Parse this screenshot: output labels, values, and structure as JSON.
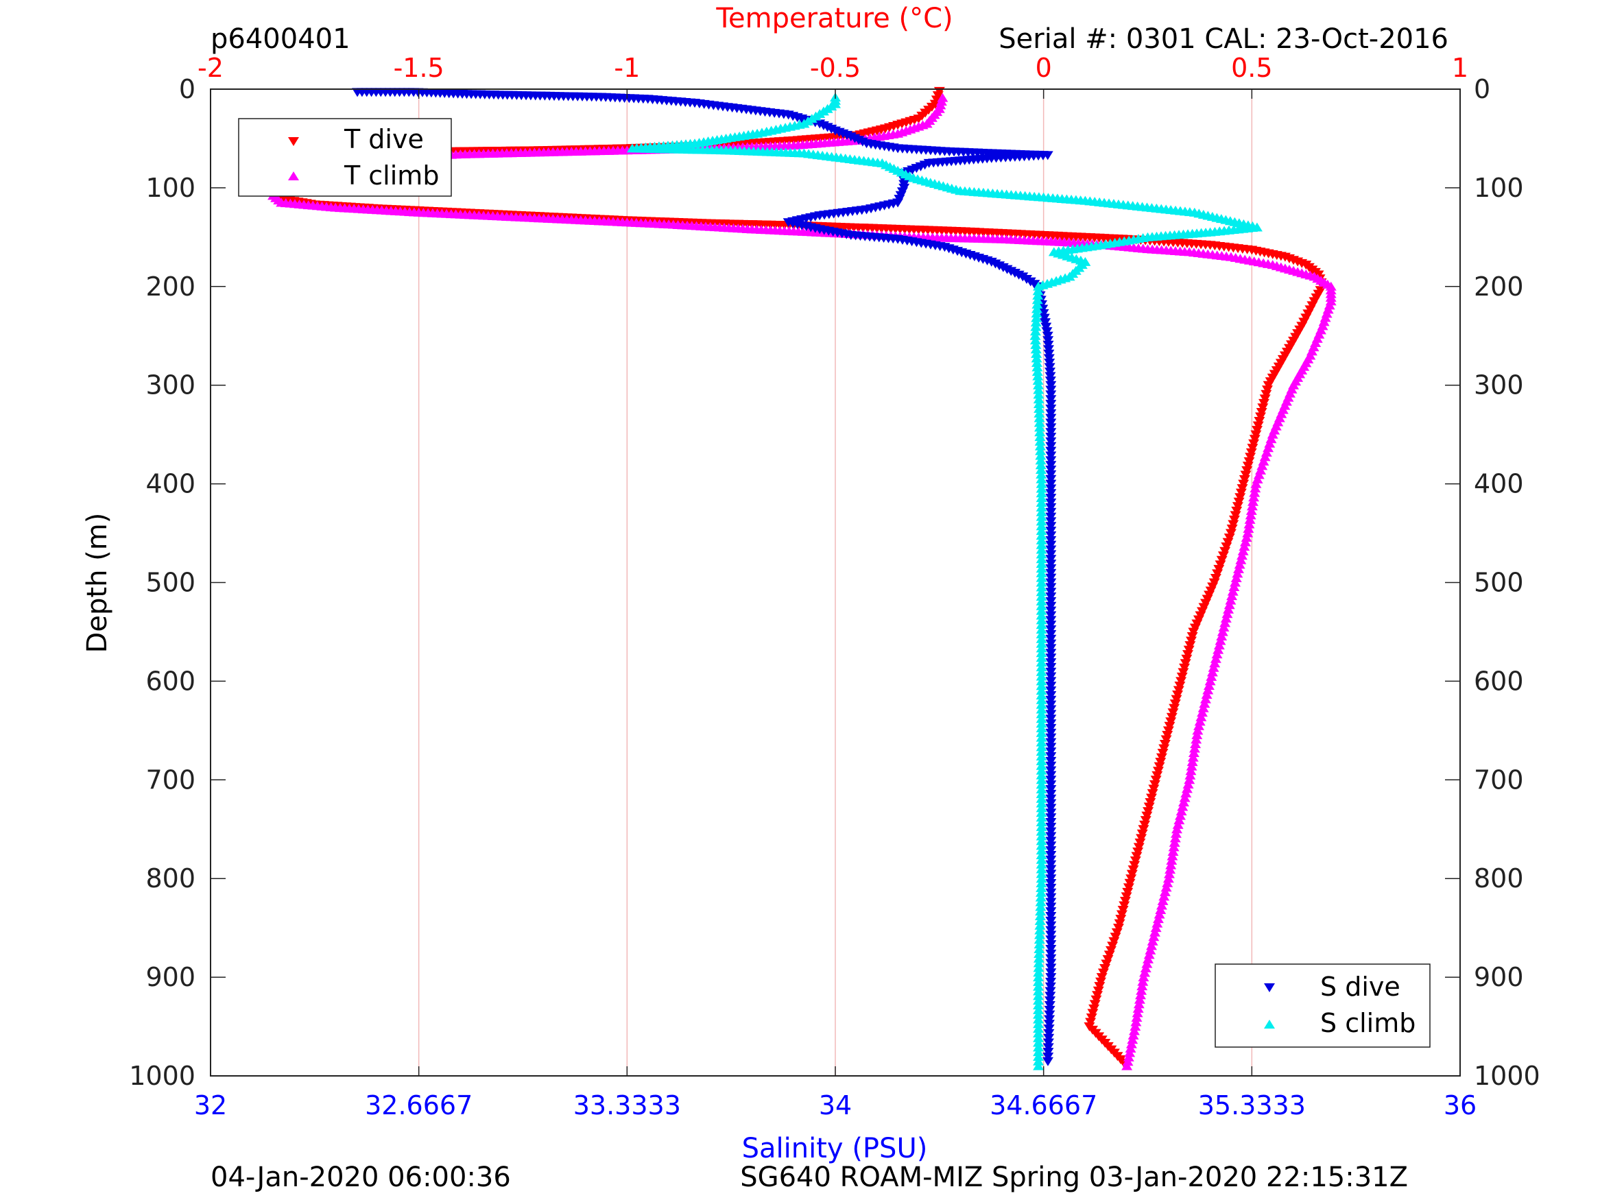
{
  "header": {
    "profile_id": "p6400401",
    "serial": "Serial #: 0301  CAL: 23-Oct-2016"
  },
  "footer": {
    "left": "04-Jan-2020 06:00:36",
    "right": "SG640 ROAM-MIZ Spring 03-Jan-2020 22:15:31Z"
  },
  "colors": {
    "temperature_axis": "#ff0000",
    "salinity_axis": "#0000ff",
    "t_dive": "#ff0000",
    "t_climb": "#ff00ff",
    "s_dive": "#0000e0",
    "s_climb": "#00eeee",
    "grid": "#f2b8b8"
  },
  "chart_data": {
    "type": "scatter",
    "y_axis": {
      "label": "Depth (m)",
      "range": [
        0,
        1000
      ],
      "reversed": true,
      "ticks": [
        "0",
        "100",
        "200",
        "300",
        "400",
        "500",
        "600",
        "700",
        "800",
        "900",
        "1000"
      ],
      "tick_values": [
        0,
        100,
        200,
        300,
        400,
        500,
        600,
        700,
        800,
        900,
        1000
      ]
    },
    "x_axis_top": {
      "label": "Temperature (°C)",
      "range": [
        -2,
        1
      ],
      "ticks": [
        "-2",
        "-1.5",
        "-1",
        "-0.5",
        "0",
        "0.5",
        "1"
      ],
      "tick_values": [
        -2,
        -1.5,
        -1,
        -0.5,
        0,
        0.5,
        1
      ]
    },
    "x_axis_bottom": {
      "label": "Salinity (PSU)",
      "range": [
        32,
        36
      ],
      "ticks": [
        "32",
        "32.6667",
        "33.3333",
        "34",
        "34.6667",
        "35.3333",
        "36"
      ],
      "tick_values": [
        32,
        32.6667,
        33.3333,
        34,
        34.6667,
        35.3333,
        36
      ]
    },
    "grid": "vertical",
    "legends": [
      {
        "placement": "top-left",
        "entries": [
          "T dive",
          "T climb"
        ]
      },
      {
        "placement": "bottom-right",
        "entries": [
          "S dive",
          "S climb"
        ]
      }
    ],
    "series": [
      {
        "name": "T dive",
        "axis": "temperature",
        "marker": "triangle-down",
        "points": [
          [
            -0.25,
            2
          ],
          [
            -0.26,
            15
          ],
          [
            -0.3,
            30
          ],
          [
            -0.38,
            40
          ],
          [
            -0.45,
            47
          ],
          [
            -0.6,
            52
          ],
          [
            -0.78,
            57
          ],
          [
            -1.0,
            60
          ],
          [
            -1.2,
            62
          ],
          [
            -1.4,
            63
          ],
          [
            -1.6,
            64
          ],
          [
            -1.78,
            65
          ],
          [
            -1.8,
            68
          ],
          [
            -1.82,
            72
          ],
          [
            -1.83,
            78
          ],
          [
            -1.84,
            85
          ],
          [
            -1.84,
            95
          ],
          [
            -1.84,
            105
          ],
          [
            -1.82,
            112
          ],
          [
            -1.75,
            117
          ],
          [
            -1.6,
            121
          ],
          [
            -1.4,
            125
          ],
          [
            -1.2,
            129
          ],
          [
            -1.0,
            133
          ],
          [
            -0.8,
            136
          ],
          [
            -0.6,
            138
          ],
          [
            -0.4,
            141
          ],
          [
            -0.2,
            144
          ],
          [
            0.0,
            148
          ],
          [
            0.1,
            150
          ],
          [
            0.2,
            152
          ],
          [
            0.3,
            155
          ],
          [
            0.4,
            158
          ],
          [
            0.5,
            163
          ],
          [
            0.58,
            170
          ],
          [
            0.63,
            178
          ],
          [
            0.66,
            188
          ],
          [
            0.67,
            200
          ],
          [
            0.65,
            215
          ],
          [
            0.62,
            240
          ],
          [
            0.58,
            270
          ],
          [
            0.54,
            300
          ],
          [
            0.51,
            350
          ],
          [
            0.48,
            400
          ],
          [
            0.45,
            450
          ],
          [
            0.41,
            500
          ],
          [
            0.36,
            550
          ],
          [
            0.33,
            600
          ],
          [
            0.3,
            650
          ],
          [
            0.27,
            700
          ],
          [
            0.24,
            750
          ],
          [
            0.21,
            800
          ],
          [
            0.18,
            850
          ],
          [
            0.14,
            900
          ],
          [
            0.11,
            950
          ],
          [
            0.2,
            990
          ]
        ]
      },
      {
        "name": "T climb",
        "axis": "temperature",
        "marker": "triangle-up",
        "points": [
          [
            0.2,
            990
          ],
          [
            0.22,
            950
          ],
          [
            0.24,
            900
          ],
          [
            0.27,
            850
          ],
          [
            0.3,
            800
          ],
          [
            0.32,
            750
          ],
          [
            0.35,
            700
          ],
          [
            0.37,
            650
          ],
          [
            0.4,
            600
          ],
          [
            0.43,
            550
          ],
          [
            0.46,
            500
          ],
          [
            0.49,
            450
          ],
          [
            0.51,
            400
          ],
          [
            0.55,
            350
          ],
          [
            0.6,
            300
          ],
          [
            0.64,
            270
          ],
          [
            0.67,
            240
          ],
          [
            0.69,
            215
          ],
          [
            0.69,
            200
          ],
          [
            0.65,
            190
          ],
          [
            0.55,
            178
          ],
          [
            0.45,
            170
          ],
          [
            0.35,
            165
          ],
          [
            0.25,
            162
          ],
          [
            0.15,
            158
          ],
          [
            0.05,
            155
          ],
          [
            -0.1,
            152
          ],
          [
            -0.3,
            150
          ],
          [
            -0.5,
            146
          ],
          [
            -0.7,
            142
          ],
          [
            -0.9,
            137
          ],
          [
            -1.1,
            133
          ],
          [
            -1.3,
            129
          ],
          [
            -1.5,
            125
          ],
          [
            -1.7,
            120
          ],
          [
            -1.83,
            115
          ],
          [
            -1.85,
            108
          ],
          [
            -1.85,
            100
          ],
          [
            -1.83,
            90
          ],
          [
            -1.8,
            82
          ],
          [
            -1.75,
            75
          ],
          [
            -1.6,
            70
          ],
          [
            -1.4,
            66
          ],
          [
            -1.2,
            64
          ],
          [
            -1.0,
            62
          ],
          [
            -0.8,
            60
          ],
          [
            -0.6,
            57
          ],
          [
            -0.45,
            52
          ],
          [
            -0.35,
            45
          ],
          [
            -0.28,
            35
          ],
          [
            -0.25,
            20
          ],
          [
            -0.24,
            5
          ]
        ]
      },
      {
        "name": "S dive",
        "axis": "salinity",
        "marker": "triangle-down",
        "points": [
          [
            32.47,
            3
          ],
          [
            32.65,
            3
          ],
          [
            32.82,
            5
          ],
          [
            32.95,
            6
          ],
          [
            33.1,
            7
          ],
          [
            33.25,
            8
          ],
          [
            33.4,
            10
          ],
          [
            33.55,
            14
          ],
          [
            33.7,
            20
          ],
          [
            33.85,
            26
          ],
          [
            33.95,
            35
          ],
          [
            34.0,
            42
          ],
          [
            34.05,
            48
          ],
          [
            34.1,
            55
          ],
          [
            34.2,
            60
          ],
          [
            34.35,
            63
          ],
          [
            34.5,
            65
          ],
          [
            34.68,
            67
          ],
          [
            34.5,
            70
          ],
          [
            34.3,
            75
          ],
          [
            34.22,
            85
          ],
          [
            34.22,
            100
          ],
          [
            34.2,
            115
          ],
          [
            34.1,
            122
          ],
          [
            33.95,
            128
          ],
          [
            33.85,
            135
          ],
          [
            33.95,
            142
          ],
          [
            34.05,
            148
          ],
          [
            34.2,
            152
          ],
          [
            34.35,
            160
          ],
          [
            34.5,
            175
          ],
          [
            34.6,
            190
          ],
          [
            34.65,
            200
          ],
          [
            34.68,
            250
          ],
          [
            34.69,
            300
          ],
          [
            34.69,
            400
          ],
          [
            34.69,
            500
          ],
          [
            34.69,
            600
          ],
          [
            34.69,
            700
          ],
          [
            34.69,
            800
          ],
          [
            34.69,
            900
          ],
          [
            34.68,
            990
          ]
        ]
      },
      {
        "name": "S climb",
        "axis": "salinity",
        "marker": "triangle-up",
        "points": [
          [
            34.65,
            990
          ],
          [
            34.65,
            900
          ],
          [
            34.66,
            800
          ],
          [
            34.66,
            700
          ],
          [
            34.66,
            600
          ],
          [
            34.66,
            500
          ],
          [
            34.66,
            400
          ],
          [
            34.65,
            300
          ],
          [
            34.64,
            250
          ],
          [
            34.65,
            200
          ],
          [
            34.75,
            190
          ],
          [
            34.8,
            175
          ],
          [
            34.7,
            165
          ],
          [
            34.85,
            158
          ],
          [
            35.0,
            150
          ],
          [
            35.2,
            145
          ],
          [
            35.35,
            140
          ],
          [
            35.15,
            125
          ],
          [
            34.8,
            113
          ],
          [
            34.4,
            103
          ],
          [
            34.25,
            90
          ],
          [
            34.15,
            75
          ],
          [
            33.9,
            65
          ],
          [
            33.65,
            62
          ],
          [
            33.35,
            60
          ],
          [
            33.55,
            55
          ],
          [
            33.75,
            45
          ],
          [
            33.9,
            35
          ],
          [
            33.95,
            25
          ],
          [
            34.0,
            15
          ],
          [
            34.0,
            5
          ]
        ]
      }
    ]
  }
}
